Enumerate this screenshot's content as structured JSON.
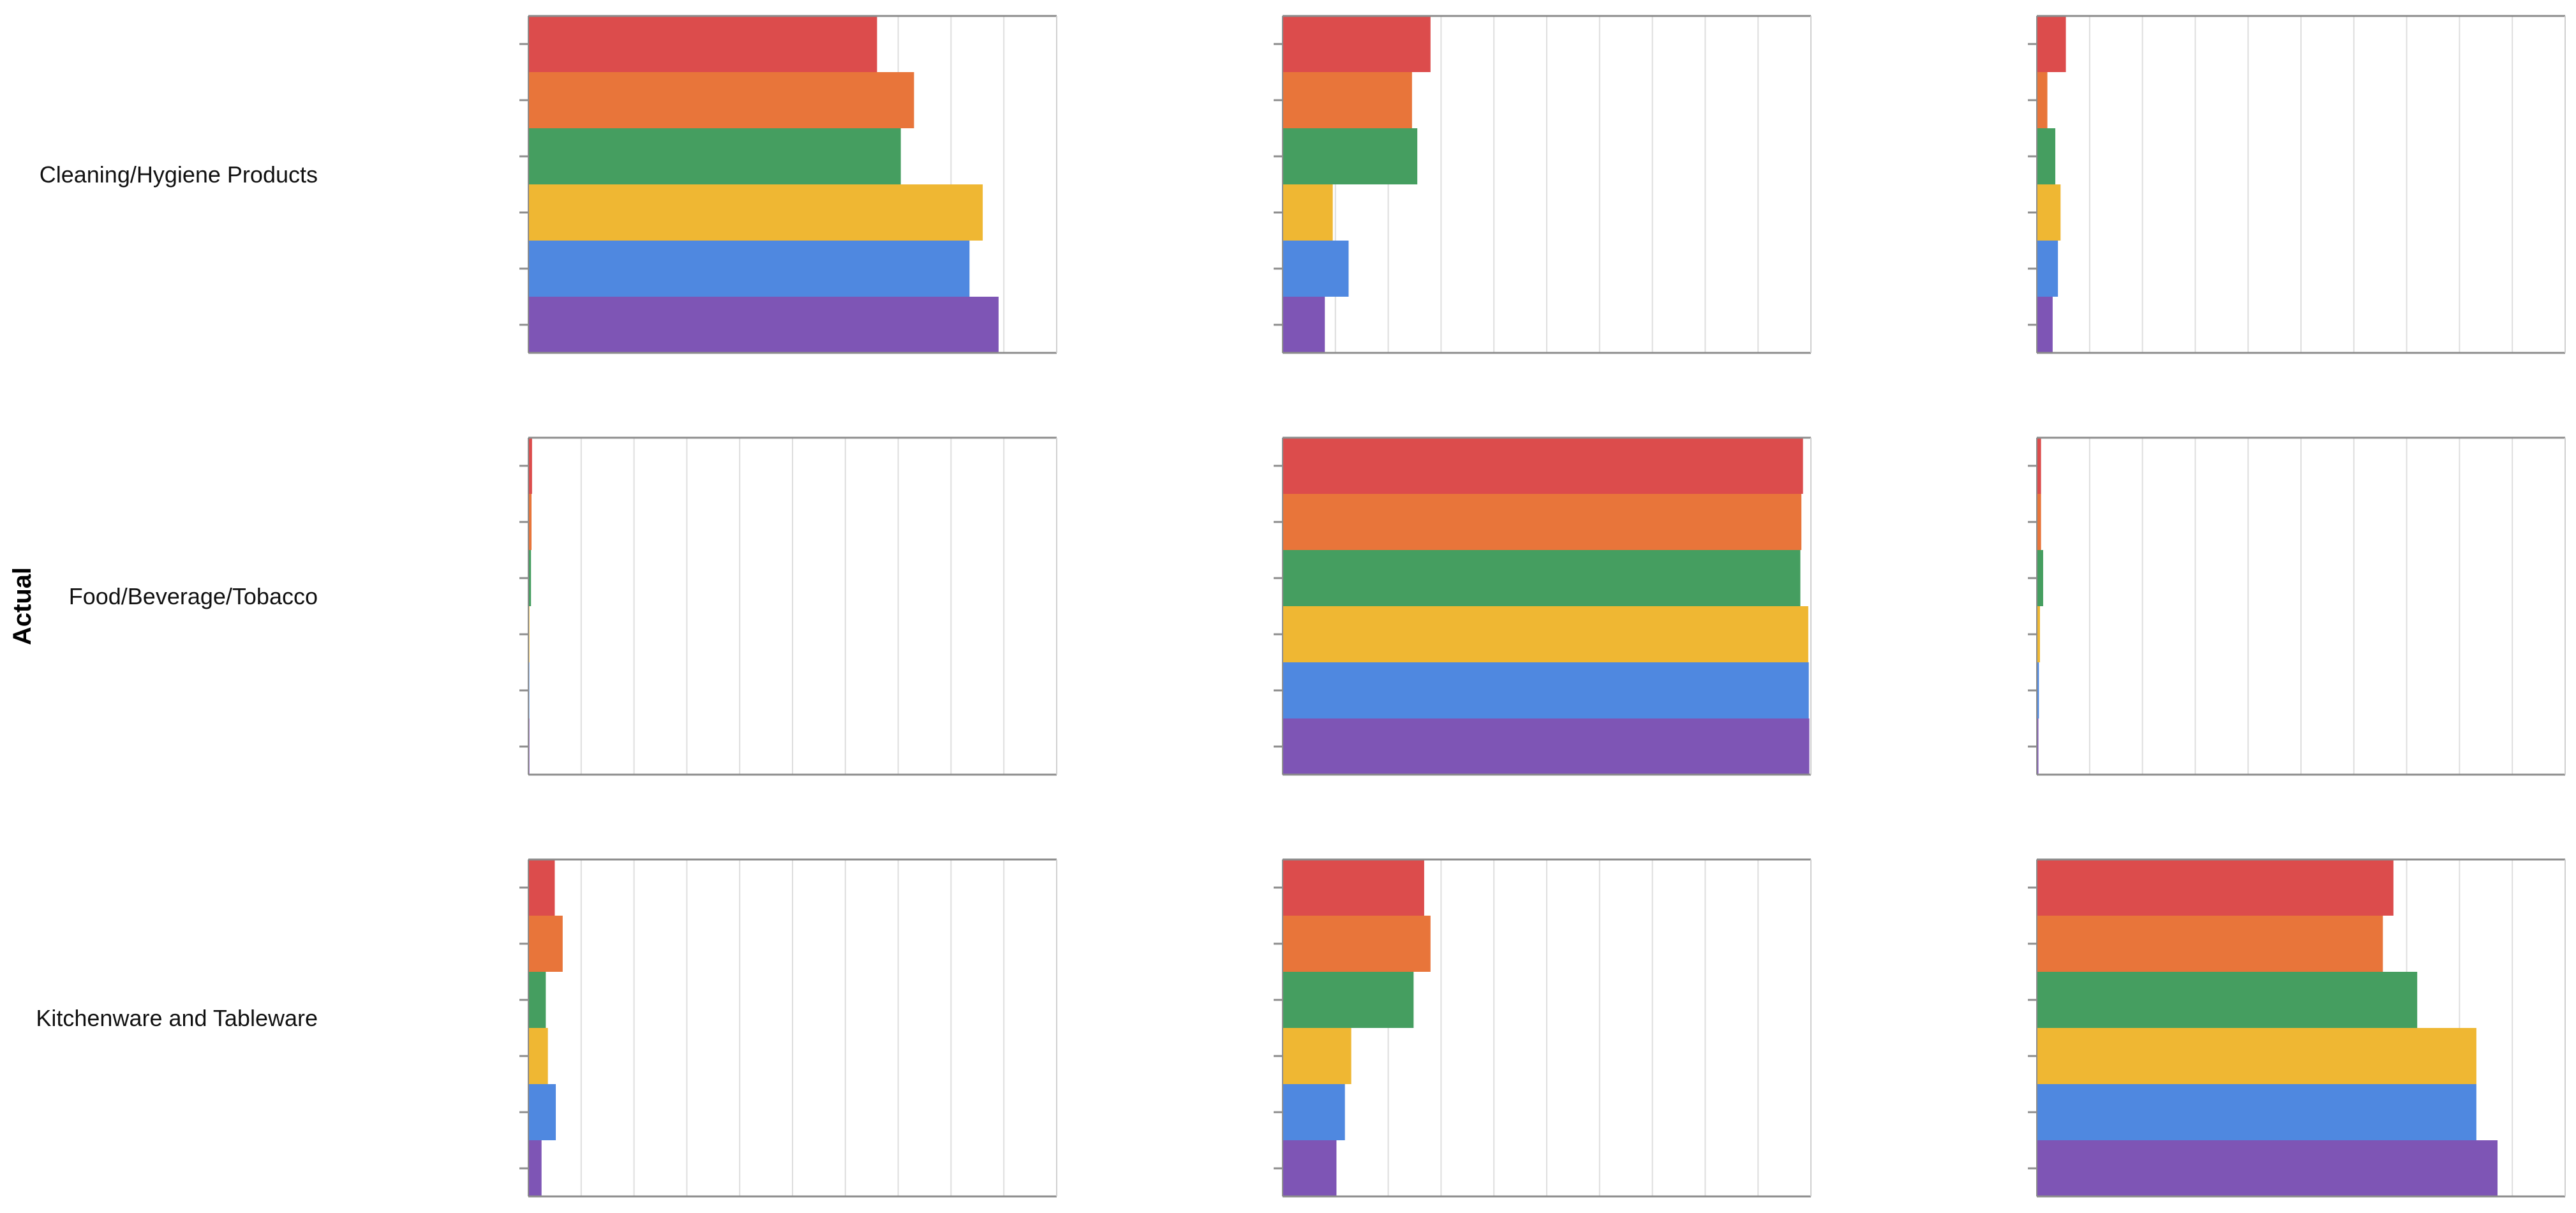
{
  "chart_data": {
    "type": "bar",
    "orientation": "horizontal",
    "layout": "faceted-grid",
    "ylabel": "Actual",
    "rows": [
      "Cleaning/Hygiene Products",
      "Food/Beverage/Tobacco",
      "Kitchenware and Tableware"
    ],
    "columns": 3,
    "xlim": [
      0,
      1
    ],
    "x_gridlines": [
      0.1,
      0.2,
      0.3,
      0.4,
      0.5,
      0.6,
      0.7,
      0.8,
      0.9
    ],
    "grid": true,
    "legend": "none",
    "series_colors": [
      "#dc4c4c",
      "#e8753a",
      "#459e60",
      "#efb733",
      "#4f88e0",
      "#7e55b5"
    ],
    "cells": [
      [
        {
          "values": [
            0.66,
            0.73,
            0.705,
            0.86,
            0.835,
            0.89
          ]
        },
        {
          "values": [
            0.28,
            0.245,
            0.255,
            0.095,
            0.125,
            0.08
          ]
        },
        {
          "values": [
            0.055,
            0.02,
            0.035,
            0.045,
            0.04,
            0.03
          ]
        }
      ],
      [
        {
          "values": [
            0.007,
            0.006,
            0.005,
            0.002,
            0.001,
            0.002
          ]
        },
        {
          "values": [
            0.985,
            0.982,
            0.98,
            0.995,
            0.996,
            0.997
          ]
        },
        {
          "values": [
            0.008,
            0.008,
            0.012,
            0.006,
            0.004,
            0.003
          ]
        }
      ],
      [
        {
          "values": [
            0.05,
            0.065,
            0.033,
            0.037,
            0.052,
            0.025
          ]
        },
        {
          "values": [
            0.268,
            0.28,
            0.248,
            0.13,
            0.118,
            0.102
          ]
        },
        {
          "values": [
            0.675,
            0.655,
            0.72,
            0.832,
            0.832,
            0.872
          ]
        }
      ]
    ]
  }
}
